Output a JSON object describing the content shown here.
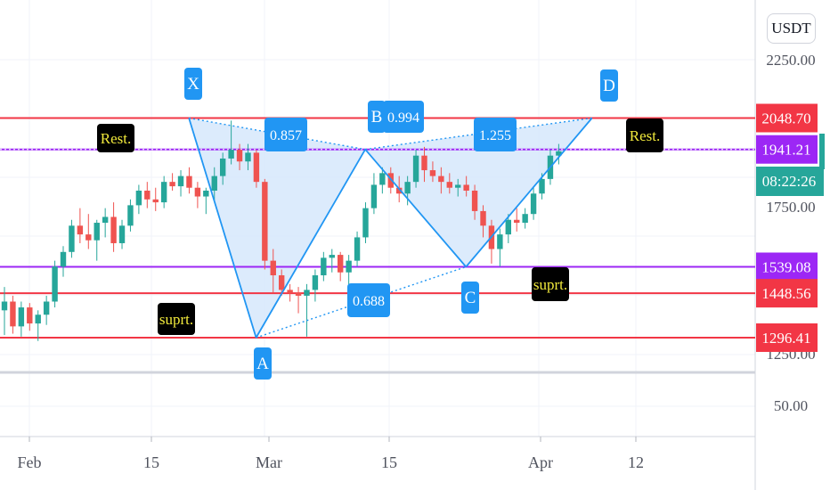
{
  "currency": "USDT",
  "colors": {
    "up": "#26a69a",
    "down": "#ef5350",
    "resistance": "#f23645",
    "support": "#9c27f5",
    "pattern": "#2196f3",
    "pattern_fill": "#d6e8fb",
    "countdown": "#26a69a"
  },
  "countdown": "08:22:26",
  "chart_data": {
    "type": "candlestick",
    "x_axis": {
      "ticks": [
        "Feb",
        "15",
        "Mar",
        "15",
        "Apr",
        "12"
      ]
    },
    "y_axis": {
      "ticks": [
        "2250.00",
        "1750.00",
        "1250.00",
        "50.00"
      ]
    },
    "horizontal_levels": [
      {
        "value": "2048.70",
        "color": "#f23645",
        "kind": "resistance"
      },
      {
        "value": "1941.21",
        "color": "#9c27f5",
        "kind": "support"
      },
      {
        "value": "1539.08",
        "color": "#9c27f5",
        "kind": "support"
      },
      {
        "value": "1448.56",
        "color": "#f23645",
        "kind": "resistance"
      },
      {
        "value": "1296.41",
        "color": "#f23645",
        "kind": "resistance"
      }
    ],
    "pattern_points": [
      {
        "label": "X",
        "date": "2021-02-20",
        "value": 2048.7
      },
      {
        "label": "A",
        "date": "2021-02-28",
        "value": 1296.41
      },
      {
        "label": "B",
        "date": "2021-03-13",
        "value": 1941.21
      },
      {
        "label": "C",
        "date": "2021-03-25",
        "value": 1539.08
      },
      {
        "label": "D",
        "date": "2021-04-09",
        "value": 2048.7
      }
    ],
    "ratios": [
      "0.857",
      "0.994",
      "1.255",
      "0.688"
    ],
    "annotations": [
      "Rest.",
      "Rest.",
      "suprt.",
      "suprt."
    ],
    "candles": [
      {
        "o": 1390,
        "h": 1470,
        "l": 1305,
        "c": 1420
      },
      {
        "o": 1420,
        "h": 1440,
        "l": 1310,
        "c": 1335
      },
      {
        "o": 1335,
        "h": 1420,
        "l": 1300,
        "c": 1400
      },
      {
        "o": 1400,
        "h": 1415,
        "l": 1320,
        "c": 1345
      },
      {
        "o": 1345,
        "h": 1390,
        "l": 1285,
        "c": 1375
      },
      {
        "o": 1375,
        "h": 1440,
        "l": 1340,
        "c": 1420
      },
      {
        "o": 1420,
        "h": 1560,
        "l": 1400,
        "c": 1540
      },
      {
        "o": 1540,
        "h": 1610,
        "l": 1505,
        "c": 1590
      },
      {
        "o": 1590,
        "h": 1700,
        "l": 1570,
        "c": 1680
      },
      {
        "o": 1680,
        "h": 1740,
        "l": 1620,
        "c": 1650
      },
      {
        "o": 1650,
        "h": 1720,
        "l": 1600,
        "c": 1630
      },
      {
        "o": 1630,
        "h": 1700,
        "l": 1560,
        "c": 1690
      },
      {
        "o": 1690,
        "h": 1740,
        "l": 1640,
        "c": 1710
      },
      {
        "o": 1710,
        "h": 1760,
        "l": 1590,
        "c": 1620
      },
      {
        "o": 1620,
        "h": 1700,
        "l": 1600,
        "c": 1680
      },
      {
        "o": 1680,
        "h": 1770,
        "l": 1660,
        "c": 1750
      },
      {
        "o": 1750,
        "h": 1820,
        "l": 1720,
        "c": 1800
      },
      {
        "o": 1800,
        "h": 1830,
        "l": 1740,
        "c": 1770
      },
      {
        "o": 1770,
        "h": 1810,
        "l": 1730,
        "c": 1760
      },
      {
        "o": 1760,
        "h": 1850,
        "l": 1740,
        "c": 1830
      },
      {
        "o": 1830,
        "h": 1860,
        "l": 1800,
        "c": 1815
      },
      {
        "o": 1815,
        "h": 1870,
        "l": 1780,
        "c": 1850
      },
      {
        "o": 1850,
        "h": 1880,
        "l": 1790,
        "c": 1810
      },
      {
        "o": 1810,
        "h": 1830,
        "l": 1740,
        "c": 1780
      },
      {
        "o": 1780,
        "h": 1810,
        "l": 1720,
        "c": 1800
      },
      {
        "o": 1800,
        "h": 1880,
        "l": 1760,
        "c": 1850
      },
      {
        "o": 1850,
        "h": 1930,
        "l": 1820,
        "c": 1910
      },
      {
        "o": 1910,
        "h": 2040,
        "l": 1890,
        "c": 1940
      },
      {
        "o": 1940,
        "h": 1960,
        "l": 1870,
        "c": 1900
      },
      {
        "o": 1900,
        "h": 1960,
        "l": 1870,
        "c": 1930
      },
      {
        "o": 1930,
        "h": 1940,
        "l": 1810,
        "c": 1830
      },
      {
        "o": 1830,
        "h": 1840,
        "l": 1530,
        "c": 1560
      },
      {
        "o": 1560,
        "h": 1600,
        "l": 1450,
        "c": 1510
      },
      {
        "o": 1510,
        "h": 1530,
        "l": 1440,
        "c": 1460
      },
      {
        "o": 1460,
        "h": 1480,
        "l": 1420,
        "c": 1450
      },
      {
        "o": 1450,
        "h": 1470,
        "l": 1380,
        "c": 1440
      },
      {
        "o": 1440,
        "h": 1480,
        "l": 1300,
        "c": 1460
      },
      {
        "o": 1460,
        "h": 1530,
        "l": 1420,
        "c": 1510
      },
      {
        "o": 1510,
        "h": 1590,
        "l": 1490,
        "c": 1570
      },
      {
        "o": 1570,
        "h": 1600,
        "l": 1520,
        "c": 1580
      },
      {
        "o": 1580,
        "h": 1590,
        "l": 1490,
        "c": 1520
      },
      {
        "o": 1520,
        "h": 1580,
        "l": 1470,
        "c": 1560
      },
      {
        "o": 1560,
        "h": 1660,
        "l": 1540,
        "c": 1640
      },
      {
        "o": 1640,
        "h": 1760,
        "l": 1620,
        "c": 1740
      },
      {
        "o": 1740,
        "h": 1860,
        "l": 1720,
        "c": 1820
      },
      {
        "o": 1820,
        "h": 1880,
        "l": 1790,
        "c": 1860
      },
      {
        "o": 1860,
        "h": 1880,
        "l": 1790,
        "c": 1810
      },
      {
        "o": 1810,
        "h": 1850,
        "l": 1760,
        "c": 1790
      },
      {
        "o": 1790,
        "h": 1850,
        "l": 1750,
        "c": 1830
      },
      {
        "o": 1830,
        "h": 1940,
        "l": 1810,
        "c": 1920
      },
      {
        "o": 1920,
        "h": 1950,
        "l": 1830,
        "c": 1870
      },
      {
        "o": 1870,
        "h": 1900,
        "l": 1830,
        "c": 1850
      },
      {
        "o": 1850,
        "h": 1880,
        "l": 1790,
        "c": 1830
      },
      {
        "o": 1830,
        "h": 1860,
        "l": 1790,
        "c": 1810
      },
      {
        "o": 1810,
        "h": 1840,
        "l": 1780,
        "c": 1820
      },
      {
        "o": 1820,
        "h": 1850,
        "l": 1780,
        "c": 1800
      },
      {
        "o": 1800,
        "h": 1820,
        "l": 1700,
        "c": 1730
      },
      {
        "o": 1730,
        "h": 1750,
        "l": 1640,
        "c": 1680
      },
      {
        "o": 1680,
        "h": 1700,
        "l": 1550,
        "c": 1600
      },
      {
        "o": 1600,
        "h": 1670,
        "l": 1540,
        "c": 1650
      },
      {
        "o": 1650,
        "h": 1720,
        "l": 1620,
        "c": 1700
      },
      {
        "o": 1700,
        "h": 1740,
        "l": 1660,
        "c": 1690
      },
      {
        "o": 1690,
        "h": 1740,
        "l": 1670,
        "c": 1720
      },
      {
        "o": 1720,
        "h": 1810,
        "l": 1700,
        "c": 1790
      },
      {
        "o": 1790,
        "h": 1860,
        "l": 1770,
        "c": 1840
      },
      {
        "o": 1840,
        "h": 1940,
        "l": 1820,
        "c": 1920
      },
      {
        "o": 1920,
        "h": 1960,
        "l": 1890,
        "c": 1935
      }
    ]
  }
}
